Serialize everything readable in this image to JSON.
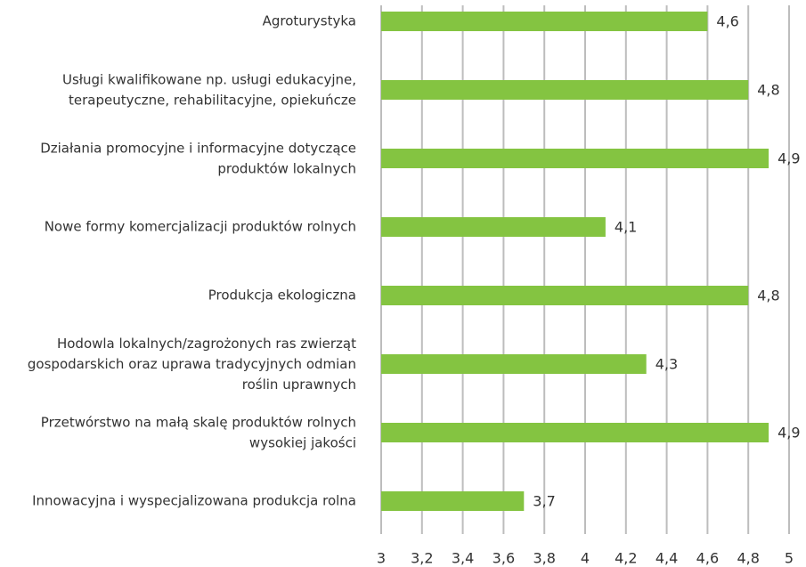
{
  "chart_data": {
    "type": "barh",
    "categories": [
      "Agroturystyka",
      "Usługi kwalifikowane np. usługi edukacyjne,\nterapeutyczne, rehabilitacyjne, opiekuńcze",
      "Działania promocyjne i informacyjne dotyczące\nproduktów lokalnych",
      "Nowe formy komercjalizacji produktów rolnych",
      "Produkcja ekologiczna",
      "Hodowla lokalnych/zagrożonych ras zwierząt\ngospodarskich oraz uprawa tradycyjnych odmian\nroślin uprawnych",
      "Przetwórstwo na małą skalę produktów rolnych\nwysokiej jakości",
      "Innowacyjna i wyspecjalizowana produkcja rolna"
    ],
    "values": [
      4.6,
      4.8,
      4.9,
      4.1,
      4.8,
      4.3,
      4.9,
      3.7
    ],
    "value_labels": [
      "4,6",
      "4,8",
      "4,9",
      "4,1",
      "4,8",
      "4,3",
      "4,9",
      "3,7"
    ],
    "color": "#84c441",
    "xlim": [
      3,
      5
    ],
    "xticks": [
      3,
      {
        "value": 3.2,
        "label": "3,2"
      },
      {
        "value": 3.4,
        "label": "3,4"
      },
      {
        "value": 3.6,
        "label": "3,6"
      },
      {
        "value": 3.8,
        "label": "3,8"
      },
      4,
      {
        "value": 4.2,
        "label": "4,2"
      },
      {
        "value": 4.4,
        "label": "4,4"
      },
      {
        "value": 4.6,
        "label": "4,6"
      },
      {
        "value": 4.8,
        "label": "4,8"
      },
      5
    ],
    "grid": true
  }
}
